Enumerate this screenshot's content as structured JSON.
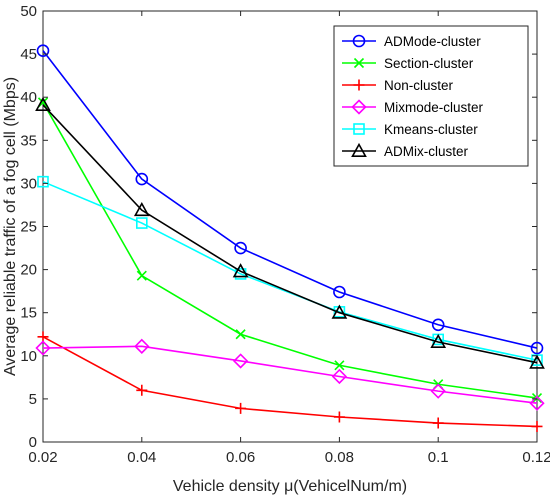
{
  "chart_data": {
    "type": "line",
    "xlabel": "Vehicle density μ(VehicelNum/m)",
    "ylabel": "Average reliable traffic of a fog cell (Mbps)",
    "x": [
      0.02,
      0.04,
      0.06,
      0.08,
      0.1,
      0.12
    ],
    "xlim": [
      0.02,
      0.12
    ],
    "ylim": [
      0,
      50
    ],
    "xticks": [
      "0.02",
      "0.04",
      "0.06",
      "0.08",
      "0.1",
      "0.12"
    ],
    "yticks": [
      "0",
      "5",
      "10",
      "15",
      "20",
      "25",
      "30",
      "35",
      "40",
      "45",
      "50"
    ],
    "grid": false,
    "legend_position": "top-right",
    "series": [
      {
        "name": "ADMode-cluster",
        "color": "#0000ff",
        "marker": "circle",
        "values": [
          45.4,
          30.5,
          22.5,
          17.4,
          13.6,
          10.9
        ]
      },
      {
        "name": "Section-cluster",
        "color": "#00ff00",
        "marker": "x",
        "values": [
          39.4,
          19.3,
          12.5,
          8.9,
          6.7,
          5.1
        ]
      },
      {
        "name": "Non-cluster",
        "color": "#ff0000",
        "marker": "plus",
        "values": [
          12.2,
          6.0,
          3.9,
          2.9,
          2.2,
          1.8
        ]
      },
      {
        "name": "Mixmode-cluster",
        "color": "#ff00ff",
        "marker": "diamond",
        "values": [
          10.9,
          11.1,
          9.4,
          7.6,
          5.9,
          4.5
        ]
      },
      {
        "name": "Kmeans-cluster",
        "color": "#00ffff",
        "marker": "square",
        "values": [
          30.2,
          25.4,
          19.5,
          15.1,
          11.9,
          9.5
        ]
      },
      {
        "name": "ADMix-cluster",
        "color": "#000000",
        "marker": "triangle",
        "values": [
          39.1,
          26.9,
          19.8,
          15.0,
          11.6,
          9.2
        ]
      }
    ]
  }
}
